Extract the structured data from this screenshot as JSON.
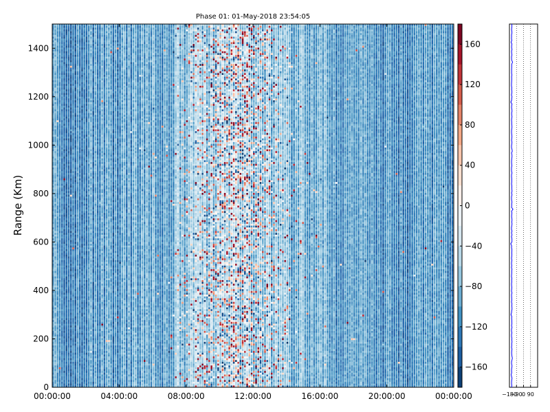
{
  "chart_data": [
    {
      "type": "heatmap",
      "title": "Phase 01: 01-May-2018 23:54:05",
      "xlabel": "",
      "ylabel": "Range (Km)",
      "xlim_hours": [
        0,
        24
      ],
      "ylim": [
        0,
        1500
      ],
      "x_tick_labels": [
        "00:00:00",
        "04:00:00",
        "08:00:00",
        "12:00:00",
        "16:00:00",
        "20:00:00",
        "00:00:00"
      ],
      "x_tick_hours": [
        0,
        4,
        8,
        12,
        16,
        20,
        24
      ],
      "y_ticks": [
        0,
        200,
        400,
        600,
        800,
        1000,
        1200,
        1400
      ],
      "time_step_minutes": 8,
      "range_step_km": 7.5,
      "value_range": [
        -180,
        180
      ],
      "colormap": "RdBu_r",
      "colorbar_ticks": [
        160,
        120,
        80,
        40,
        0,
        -40,
        -80,
        -120,
        -160
      ],
      "pattern": "mostly -120 to -80 phase values; strong scatter spanning full range concentrated between about 09:00 and 13:00"
    },
    {
      "type": "line",
      "xlabel": "",
      "ylabel": "",
      "xlim": [
        -180,
        180
      ],
      "ylim": [
        0,
        1500
      ],
      "x_tick_labels": [
        "-180",
        "-90",
        "0",
        "90"
      ],
      "x_ticks": [
        -180,
        -90,
        0,
        90
      ],
      "baseline_value": -150,
      "spikes": [
        {
          "range": 738,
          "value": -135
        },
        {
          "range": 593,
          "value": -163
        },
        {
          "range": 878,
          "value": -152
        },
        {
          "range": 1425,
          "value": -158
        },
        {
          "range": 1340,
          "value": -140
        },
        {
          "range": 1180,
          "value": -162
        },
        {
          "range": 972,
          "value": -144
        },
        {
          "range": 455,
          "value": -153
        },
        {
          "range": 300,
          "value": -160
        },
        {
          "range": 120,
          "value": -143
        },
        {
          "range": 50,
          "value": -157
        }
      ],
      "grid": true,
      "line_color": "#0000ff"
    }
  ]
}
